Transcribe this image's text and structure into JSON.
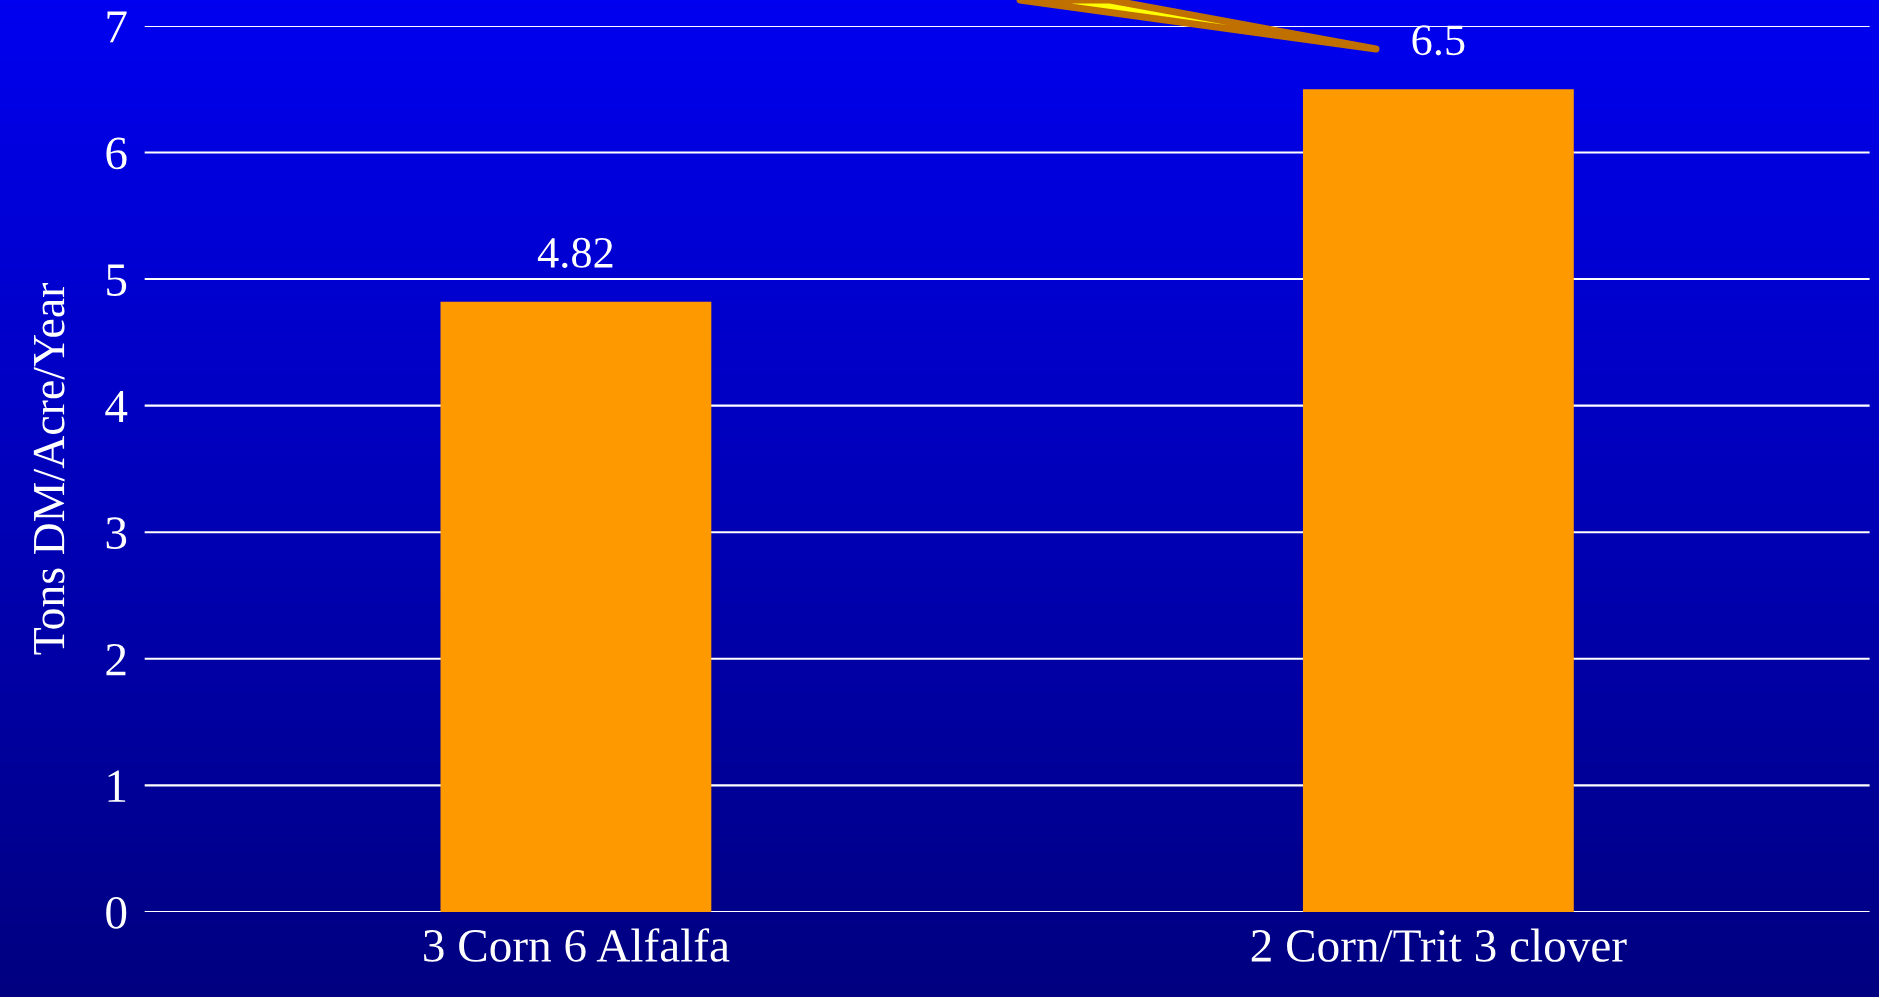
{
  "chart_data": {
    "type": "bar",
    "ylabel": "Tons DM/Acre/Year",
    "categories": [
      "3 Corn 6 Alfalfa",
      "2 Corn/Trit 3 clover"
    ],
    "values": [
      4.82,
      6.5
    ],
    "color": "#ff9900",
    "data_labels": true,
    "ylim": [
      0,
      7
    ],
    "yticks": [
      0,
      1,
      2,
      3,
      4,
      5,
      6,
      7
    ],
    "grid": "y",
    "legend": false
  }
}
